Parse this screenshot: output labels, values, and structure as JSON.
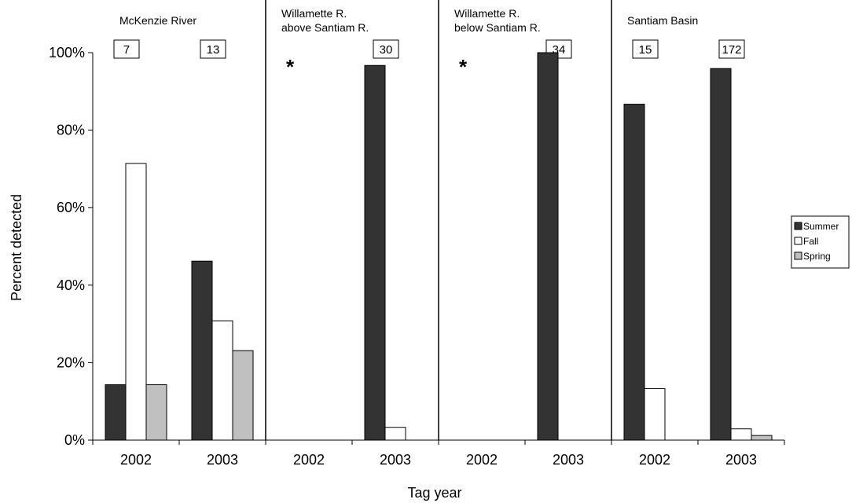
{
  "chart_data": {
    "type": "bar",
    "ylabel": "Percent detected",
    "xlabel": "Tag year",
    "ylim": [
      0,
      100
    ],
    "y_ticks": [
      "0%",
      "20%",
      "40%",
      "60%",
      "80%",
      "100%"
    ],
    "legend_position": "right",
    "series": [
      {
        "name": "Summer",
        "color": "#333333"
      },
      {
        "name": "Fall",
        "color": "#ffffff"
      },
      {
        "name": "Spring",
        "color": "#c0c0c0"
      }
    ],
    "groups": [
      {
        "title": [
          "McKenzie River"
        ],
        "years": [
          {
            "label": "2002",
            "n": "7",
            "values": [
              14.3,
              71.4,
              14.3
            ]
          },
          {
            "label": "2003",
            "n": "13",
            "values": [
              46.2,
              30.8,
              23.1
            ]
          }
        ]
      },
      {
        "title": [
          "Willamette R.",
          "above Santiam R."
        ],
        "years": [
          {
            "label": "2002",
            "marker": "*",
            "values": [
              null,
              null,
              null
            ]
          },
          {
            "label": "2003",
            "n": "30",
            "values": [
              96.7,
              3.3,
              0
            ]
          }
        ]
      },
      {
        "title": [
          "Willamette R.",
          "below Santiam R."
        ],
        "years": [
          {
            "label": "2002",
            "marker": "*",
            "values": [
              null,
              null,
              null
            ]
          },
          {
            "label": "2003",
            "n": "34",
            "values": [
              100,
              0,
              0
            ]
          }
        ]
      },
      {
        "title": [
          "Santiam Basin"
        ],
        "years": [
          {
            "label": "2002",
            "n": "15",
            "values": [
              86.7,
              13.3,
              0
            ]
          },
          {
            "label": "2003",
            "n": "172",
            "values": [
              95.9,
              2.9,
              1.2
            ]
          }
        ]
      }
    ]
  }
}
